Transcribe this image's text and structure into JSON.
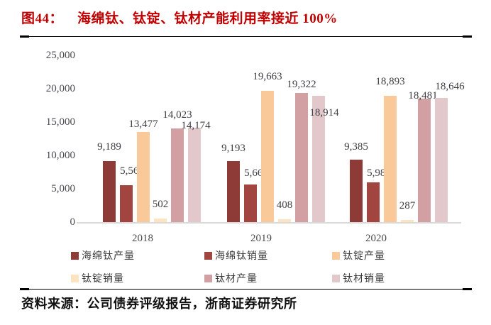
{
  "header": {
    "figure_label": "图44：",
    "figure_title": "海绵钛、钛锭、钛材产能利用率接近 100%"
  },
  "footer": {
    "source": "资料来源：公司债券评级报告，浙商证券研究所"
  },
  "colors": {
    "title_red": "#c00000",
    "axis_line": "#d9d9d9",
    "tick_text": "#4a4a50",
    "label_text": "#3e3e44"
  },
  "chart_data": {
    "type": "bar",
    "title": "海绵钛、钛锭、钛材产能利用率接近 100%",
    "categories": [
      "2018",
      "2019",
      "2020"
    ],
    "series": [
      {
        "name": "海绵钛产量",
        "color": "#8E3A36",
        "values": [
          9189,
          9193,
          9385
        ]
      },
      {
        "name": "海绵钛销量",
        "color": "#A24440",
        "values": [
          5564,
          5665,
          5984
        ]
      },
      {
        "name": "钛锭产量",
        "color": "#FAC99A",
        "values": [
          13477,
          19663,
          18893
        ]
      },
      {
        "name": "钛锭销量",
        "color": "#FCE4C2",
        "values": [
          502,
          408,
          287
        ]
      },
      {
        "name": "钛材产量",
        "color": "#D2A0A2",
        "values": [
          14023,
          19322,
          18481
        ]
      },
      {
        "name": "钛材销量",
        "color": "#E2C8CA",
        "values": [
          14174,
          18914,
          18646
        ]
      }
    ],
    "data_labels": [
      [
        "9,189",
        "5,564",
        "13,477",
        "502",
        "14,023",
        "14,174"
      ],
      [
        "9,193",
        "5,665",
        "19,663",
        "408",
        "19,322",
        "18,914"
      ],
      [
        "9,385",
        "5,984",
        "18,893",
        "287",
        "18,481",
        "18,646"
      ]
    ],
    "y_axis": {
      "min": 0,
      "max": 25000,
      "tick_values": [
        25000,
        20000,
        15000,
        10000,
        5000,
        0
      ],
      "tick_labels": [
        "25,000",
        "20,000",
        "15,000",
        "10,000",
        "5,000",
        "0"
      ]
    },
    "grid": false,
    "legend_position": "bottom",
    "legend_rows": [
      [
        "海绵钛产量",
        "海绵钛销量",
        "钛锭产量"
      ],
      [
        "钛锭销量",
        "钛材产量",
        "钛材销量"
      ]
    ],
    "label_offsets": [
      [
        [
          0,
          0
        ],
        [
          8,
          0
        ],
        [
          0,
          9
        ],
        [
          0,
          0
        ],
        [
          0,
          1
        ],
        [
          2,
          17
        ]
      ],
      [
        [
          0,
          2
        ],
        [
          8,
          4
        ],
        [
          0,
          0
        ],
        [
          0,
          0
        ],
        [
          0,
          8
        ],
        [
          8,
          44
        ]
      ],
      [
        [
          0,
          2
        ],
        [
          8,
          7
        ],
        [
          0,
          0
        ],
        [
          0,
          0
        ],
        [
          -2,
          16
        ],
        [
          12,
          4
        ]
      ]
    ]
  }
}
